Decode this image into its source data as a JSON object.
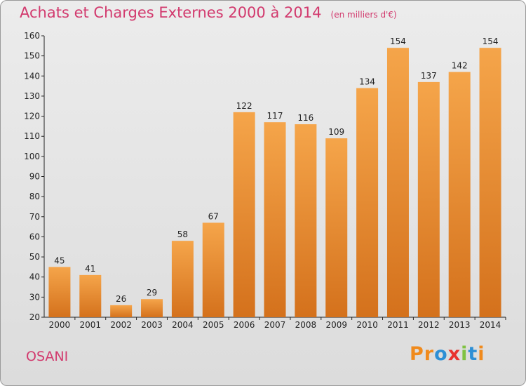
{
  "chart_data": {
    "type": "bar",
    "title": "Achats et Charges Externes 2000 à 2014",
    "subtitle": "(en milliers d'€)",
    "categories": [
      "2000",
      "2001",
      "2002",
      "2003",
      "2004",
      "2005",
      "2006",
      "2007",
      "2008",
      "2009",
      "2010",
      "2011",
      "2012",
      "2013",
      "2014"
    ],
    "values": [
      45,
      41,
      26,
      29,
      58,
      67,
      122,
      117,
      116,
      109,
      134,
      154,
      137,
      142,
      154
    ],
    "ylim": [
      20,
      160
    ],
    "yticks": [
      20,
      30,
      40,
      50,
      60,
      70,
      80,
      90,
      100,
      110,
      120,
      130,
      140,
      150,
      160
    ],
    "grid": false,
    "colors": {
      "bar_top": "#f5a54a",
      "bar_bottom": "#d4711c"
    }
  },
  "location": "OSANI",
  "logo": {
    "text": "Proxiti",
    "letters": [
      "P",
      "r",
      "o",
      "x",
      "i",
      "t",
      "i"
    ],
    "colors": [
      "#f08a1c",
      "#f08a1c",
      "#2d8fd5",
      "#e8322d",
      "#7fc242",
      "#2d8fd5",
      "#f08a1c"
    ]
  }
}
